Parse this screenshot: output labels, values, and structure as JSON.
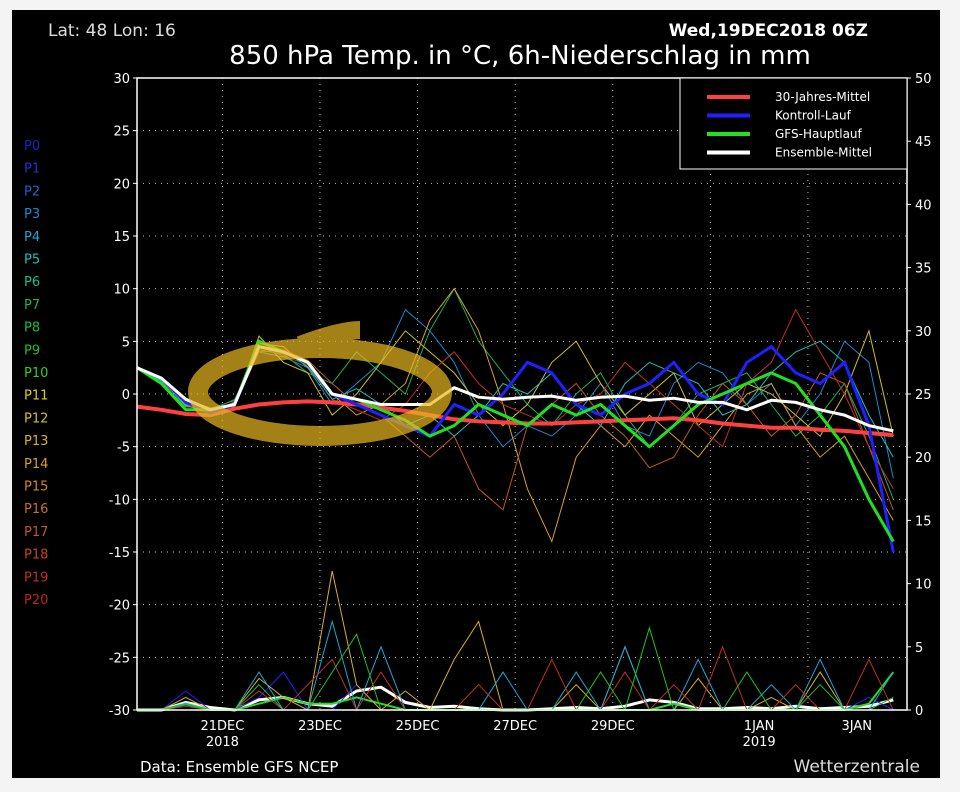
{
  "header": {
    "location": "Lat: 48 Lon: 16",
    "run": "Wed,19DEC2018 06Z",
    "title": "850 hPa Temp. in °C, 6h-Niederschlag in mm"
  },
  "footer": {
    "source": "Data: Ensemble GFS NCEP",
    "brand": "Wetterzentrale"
  },
  "members": {
    "labels": [
      "P0",
      "P1",
      "P2",
      "P3",
      "P4",
      "P5",
      "P6",
      "P7",
      "P8",
      "P9",
      "P10",
      "P11",
      "P12",
      "P13",
      "P14",
      "P15",
      "P16",
      "P17",
      "P18",
      "P19",
      "P20"
    ],
    "colors": [
      "#2020c8",
      "#2030d8",
      "#2060d0",
      "#1a8ad0",
      "#18a8d8",
      "#18c0c0",
      "#18c090",
      "#18b060",
      "#18c040",
      "#20c020",
      "#30d020",
      "#d8d020",
      "#d0c020",
      "#d8b020",
      "#d8a020",
      "#d08818",
      "#c87018",
      "#c05818",
      "#c84020",
      "#c03020",
      "#c02020"
    ]
  },
  "chart_data": {
    "type": "line",
    "title": "850 hPa Temp. in °C, 6h-Niederschlag in mm",
    "x_unit": "days after 19DEC2018 06Z",
    "xlim": [
      0,
      15.78
    ],
    "ylim": [
      -30,
      30
    ],
    "y2lim": [
      0,
      50
    ],
    "yticks": [
      30,
      25,
      20,
      15,
      10,
      5,
      0,
      -5,
      -10,
      -15,
      -20,
      -25,
      -30
    ],
    "y2ticks": [
      50,
      45,
      40,
      35,
      30,
      25,
      20,
      15,
      10,
      5,
      0
    ],
    "xticks": [
      {
        "day": 1.75,
        "label": "21DEC",
        "sub": "2018"
      },
      {
        "day": 3.75,
        "label": "23DEC",
        "sub": ""
      },
      {
        "day": 5.75,
        "label": "25DEC",
        "sub": ""
      },
      {
        "day": 7.75,
        "label": "27DEC",
        "sub": ""
      },
      {
        "day": 9.75,
        "label": "29DEC",
        "sub": ""
      },
      {
        "day": 12.75,
        "label": "1JAN",
        "sub": "2019"
      },
      {
        "day": 14.75,
        "label": "3JAN",
        "sub": ""
      }
    ],
    "grid_days": [
      1.75,
      3.75,
      5.75,
      7.75,
      9.75,
      11.75,
      13.75
    ],
    "legend_position": "top-right",
    "x": [
      0,
      0.5,
      1,
      1.5,
      2,
      2.5,
      3,
      3.5,
      4,
      4.5,
      5,
      5.5,
      6,
      6.5,
      7,
      7.5,
      8,
      8.5,
      9,
      9.5,
      10,
      10.5,
      11,
      11.5,
      12,
      12.5,
      13,
      13.5,
      14,
      14.5,
      15,
      15.5
    ],
    "series": [
      {
        "name": "30-Jahres-Mittel",
        "color": "#ff4040",
        "width": 4,
        "legend": true,
        "values": [
          -1.2,
          -1.5,
          -1.9,
          -2.0,
          -1.4,
          -1.0,
          -0.8,
          -0.7,
          -0.8,
          -1.0,
          -1.3,
          -1.6,
          -2.0,
          -2.4,
          -2.6,
          -2.7,
          -2.8,
          -2.8,
          -2.7,
          -2.6,
          -2.5,
          -2.4,
          -2.3,
          -2.5,
          -2.8,
          -3.0,
          -3.2,
          -3.2,
          -3.4,
          -3.5,
          -3.7,
          -3.9
        ]
      },
      {
        "name": "Kontroll-Lauf",
        "color": "#2020ff",
        "width": 3,
        "legend": true,
        "values": [
          2.5,
          1.5,
          -0.8,
          -1.8,
          -1.0,
          4.5,
          4.0,
          3.0,
          0.0,
          -1.0,
          -2.0,
          -3.0,
          -4.0,
          -1.0,
          -2.0,
          0.0,
          3.0,
          2.0,
          -1.0,
          -2.0,
          0.0,
          1.0,
          3.0,
          0.0,
          -1.0,
          3.0,
          4.5,
          2.0,
          1.0,
          3.0,
          -3.0,
          -15.0
        ]
      },
      {
        "name": "GFS-Hauptlauf",
        "color": "#20e020",
        "width": 3,
        "legend": true,
        "values": [
          2.5,
          1.0,
          -1.5,
          -1.5,
          -1.0,
          5.0,
          4.0,
          3.0,
          0.0,
          -0.5,
          -1.5,
          -2.5,
          -4.0,
          -3.0,
          -1.0,
          -2.0,
          -3.0,
          -1.0,
          -2.0,
          -1.0,
          -3.0,
          -5.0,
          -3.0,
          -1.0,
          0.0,
          1.0,
          2.0,
          1.0,
          -2.0,
          -5.0,
          -10.0,
          -14.0
        ]
      },
      {
        "name": "Ensemble-Mittel",
        "color": "#ffffff",
        "width": 3,
        "legend": true,
        "values": [
          2.5,
          1.5,
          -0.5,
          -1.5,
          -1.0,
          4.5,
          4.0,
          3.0,
          0.0,
          -0.5,
          -1.0,
          -1.0,
          -1.0,
          0.6,
          -0.3,
          -0.5,
          -0.3,
          -0.2,
          -0.6,
          -0.3,
          -0.2,
          -0.6,
          -0.4,
          -0.8,
          -0.8,
          -1.5,
          -0.6,
          -0.8,
          -1.5,
          -2.0,
          -3.0,
          -3.5
        ]
      },
      {
        "name": "P3",
        "color": "#1a8ad0",
        "width": 1,
        "legend": false,
        "values": [
          2.5,
          1.2,
          -1.0,
          -1.6,
          -0.5,
          4.0,
          3.5,
          2.5,
          -1.0,
          1.0,
          3.0,
          8.0,
          6.0,
          3.0,
          -2.0,
          -5.0,
          -3.0,
          -4.0,
          -2.0,
          1.0,
          -3.0,
          -4.0,
          1.0,
          3.0,
          2.0,
          -1.0,
          1.0,
          -3.0,
          0.0,
          5.0,
          3.0,
          -8.0
        ]
      },
      {
        "name": "P7",
        "color": "#18b060",
        "width": 1,
        "legend": false,
        "values": [
          2.4,
          1.0,
          -1.2,
          -1.4,
          -0.6,
          4.2,
          3.8,
          2.0,
          1.0,
          4.0,
          2.0,
          0.0,
          6.0,
          10.0,
          5.0,
          2.0,
          -1.0,
          -3.0,
          0.0,
          2.0,
          -2.0,
          -5.0,
          -3.0,
          0.0,
          1.0,
          2.0,
          -1.0,
          -4.0,
          -2.0,
          1.0,
          -4.0,
          -10.0
        ]
      },
      {
        "name": "P12",
        "color": "#d0c020",
        "width": 1,
        "legend": false,
        "values": [
          2.6,
          1.4,
          -0.8,
          -1.5,
          -1.2,
          5.5,
          3.0,
          2.0,
          -2.0,
          0.0,
          3.0,
          6.0,
          4.0,
          2.0,
          -1.0,
          -3.0,
          -1.0,
          3.0,
          5.0,
          1.0,
          -2.0,
          0.0,
          2.0,
          -3.0,
          -1.0,
          1.0,
          0.0,
          -2.0,
          -4.0,
          0.0,
          6.0,
          -4.0
        ]
      },
      {
        "name": "P14",
        "color": "#d8a020",
        "width": 1,
        "legend": false,
        "values": [
          2.5,
          1.3,
          -1.1,
          -1.7,
          -0.8,
          4.8,
          4.5,
          2.5,
          0.0,
          -2.0,
          -1.0,
          1.0,
          7.0,
          10.0,
          6.0,
          -1.0,
          -9.0,
          -14.0,
          -6.0,
          -3.0,
          -5.0,
          -2.0,
          -4.0,
          -6.0,
          -3.0,
          0.0,
          1.0,
          -3.0,
          -6.0,
          -4.0,
          -8.0,
          -12.0
        ]
      },
      {
        "name": "P17",
        "color": "#c05818",
        "width": 1,
        "legend": false,
        "values": [
          2.5,
          1.5,
          -0.6,
          -1.3,
          -1.1,
          4.0,
          4.2,
          3.2,
          1.0,
          -1.0,
          -2.0,
          -4.0,
          -6.0,
          -4.0,
          -9.0,
          -11.0,
          -3.0,
          -1.0,
          1.0,
          -2.0,
          -4.0,
          -7.0,
          -6.0,
          -2.0,
          1.0,
          -1.0,
          -4.0,
          -2.0,
          2.0,
          1.0,
          -5.0,
          -11.0
        ]
      },
      {
        "name": "P19",
        "color": "#c03020",
        "width": 1,
        "legend": false,
        "values": [
          2.4,
          1.1,
          -0.9,
          -1.9,
          -0.7,
          4.6,
          3.6,
          2.8,
          -0.5,
          -1.5,
          -2.5,
          -1.0,
          2.0,
          4.0,
          1.0,
          -1.0,
          -2.0,
          -3.0,
          -1.0,
          0.0,
          3.0,
          1.0,
          -1.0,
          -3.0,
          -5.0,
          1.0,
          3.0,
          8.0,
          4.0,
          0.0,
          -5.0,
          -9.0
        ]
      },
      {
        "name": "P5",
        "color": "#18c0c0",
        "width": 1,
        "legend": false,
        "values": [
          2.5,
          1.3,
          -1.0,
          -1.5,
          -0.9,
          4.4,
          4.1,
          2.6,
          -0.5,
          0.5,
          -1.0,
          -3.0,
          -2.0,
          -4.0,
          -2.0,
          1.0,
          0.0,
          2.0,
          -1.0,
          -3.0,
          1.0,
          3.0,
          2.0,
          1.0,
          -2.0,
          -1.0,
          2.0,
          4.0,
          5.0,
          3.0,
          -2.0,
          -6.0
        ]
      }
    ],
    "precip_series": [
      {
        "name": "Ensemble-Mittel Niederschlag",
        "color": "#ffffff",
        "width": 3,
        "values": [
          0,
          0,
          0.6,
          0.2,
          0,
          0.8,
          1.0,
          0.5,
          0.3,
          1.5,
          1.8,
          0.6,
          0.2,
          0.3,
          0.1,
          0,
          0,
          0.1,
          0.2,
          0.1,
          0.3,
          0.8,
          0.6,
          0.1,
          0.1,
          0.2,
          0.1,
          0.3,
          0.1,
          0.2,
          0.3,
          0.8
        ]
      },
      {
        "name": "Kontroll-Lauf Niederschlag",
        "color": "#2020ff",
        "width": 1,
        "values": [
          0,
          0,
          1.5,
          0,
          0,
          1.0,
          3.0,
          0,
          0,
          2.0,
          0,
          0,
          0,
          0,
          0,
          0,
          0,
          0,
          0,
          0,
          0,
          0,
          0,
          0,
          0,
          0,
          0,
          0,
          0,
          0,
          1.0,
          0
        ]
      },
      {
        "name": "GFS-Hauptlauf Niederschlag",
        "color": "#20e020",
        "width": 2,
        "values": [
          0,
          0,
          0.5,
          0,
          0,
          0.5,
          1.0,
          0.5,
          0.5,
          1.0,
          0.5,
          0,
          0,
          0,
          0,
          0,
          0,
          0,
          0,
          0,
          0,
          0,
          0.5,
          0,
          0,
          0,
          0,
          0,
          0,
          0,
          0.5,
          3.0
        ]
      },
      {
        "name": "P13 Niederschlag",
        "color": "#d8b020",
        "width": 1,
        "values": [
          0,
          0,
          1.0,
          0,
          0,
          2.5,
          1.0,
          0,
          11.0,
          2.0,
          0,
          1.5,
          0,
          4.0,
          7.0,
          0,
          0,
          0,
          2.0,
          0,
          5.0,
          0,
          0,
          2.5,
          0,
          0,
          1.0,
          0,
          3.0,
          0,
          0,
          0
        ]
      },
      {
        "name": "P4 Niederschlag",
        "color": "#18a8d8",
        "width": 1,
        "values": [
          0,
          0,
          0.5,
          0,
          0,
          3.0,
          0,
          0,
          7.0,
          0,
          5.0,
          0,
          0,
          0,
          0,
          3.0,
          0,
          0,
          3.0,
          0,
          5.0,
          0,
          0,
          4.0,
          0,
          0,
          2.0,
          0,
          4.0,
          0,
          0,
          3.0
        ]
      },
      {
        "name": "P19 Niederschlag",
        "color": "#c03020",
        "width": 1,
        "values": [
          0,
          0,
          0.3,
          0,
          0,
          1.5,
          0,
          2.0,
          4.0,
          0,
          3.0,
          0,
          0,
          0,
          2.0,
          0,
          0,
          4.0,
          0,
          0,
          3.0,
          0,
          2.0,
          0,
          5.0,
          0,
          0,
          2.0,
          0,
          0,
          4.0,
          0
        ]
      },
      {
        "name": "P9 Niederschlag",
        "color": "#20c020",
        "width": 1,
        "values": [
          0,
          0,
          0.4,
          0,
          0,
          2.0,
          0,
          0,
          3.0,
          6.0,
          0,
          0,
          0,
          0,
          0,
          0,
          0,
          0,
          0,
          3.0,
          0,
          6.5,
          0,
          0,
          0,
          3.0,
          0,
          0,
          2.0,
          0,
          0,
          1.0
        ]
      }
    ]
  }
}
